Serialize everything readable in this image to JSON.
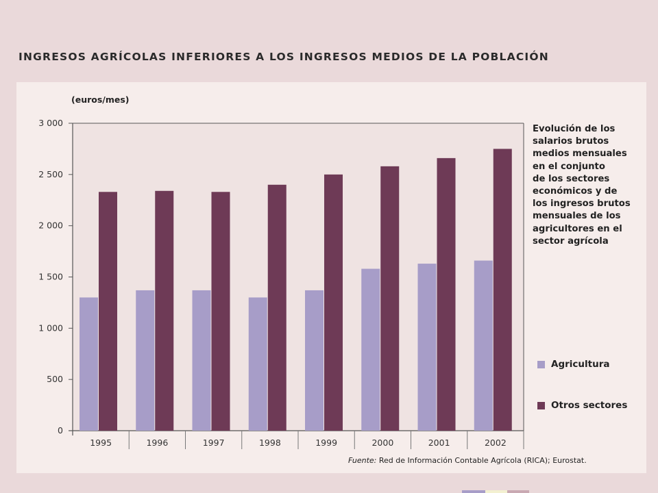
{
  "page": {
    "title": "INGRESOS AGRÍCOLAS INFERIORES A LOS INGRESOS MEDIOS DE LA POBLACIÓN"
  },
  "chart_data": {
    "type": "bar",
    "ylabel": "(euros/mes)",
    "xlabel": "",
    "categories": [
      "1995",
      "1996",
      "1997",
      "1998",
      "1999",
      "2000",
      "2001",
      "2002"
    ],
    "series": [
      {
        "name": "Agricultura",
        "color": "#a79dc8",
        "values": [
          1300,
          1370,
          1370,
          1300,
          1370,
          1580,
          1630,
          1660
        ]
      },
      {
        "name": "Otros sectores",
        "color": "#6e3a56",
        "values": [
          2330,
          2340,
          2330,
          2400,
          2500,
          2580,
          2660,
          2750
        ]
      }
    ],
    "ylim": [
      0,
      3000
    ],
    "yticks": [
      0,
      500,
      1000,
      1500,
      2000,
      2500,
      3000
    ],
    "ytick_labels": [
      "0",
      "500",
      "1 000",
      "1 500",
      "2 000",
      "2 500",
      "3 000"
    ],
    "grid": false,
    "legend_position": "right",
    "annotation": "Evolución de los\nsalarios brutos\nmedios mensuales\nen el conjunto\nde los sectores\neconómicos y de\nlos ingresos brutos\nmensuales de los\nagricultores en el\nsector agrícola"
  },
  "footnote": {
    "label": "Fuente:",
    "text": " Red de Información Contable Agrícola (RICA); Eurostat."
  },
  "colors": {
    "background": "#ead9da",
    "panel": "#f6edeb",
    "agricultura": "#a79dc8",
    "otros": "#6e3a56"
  }
}
